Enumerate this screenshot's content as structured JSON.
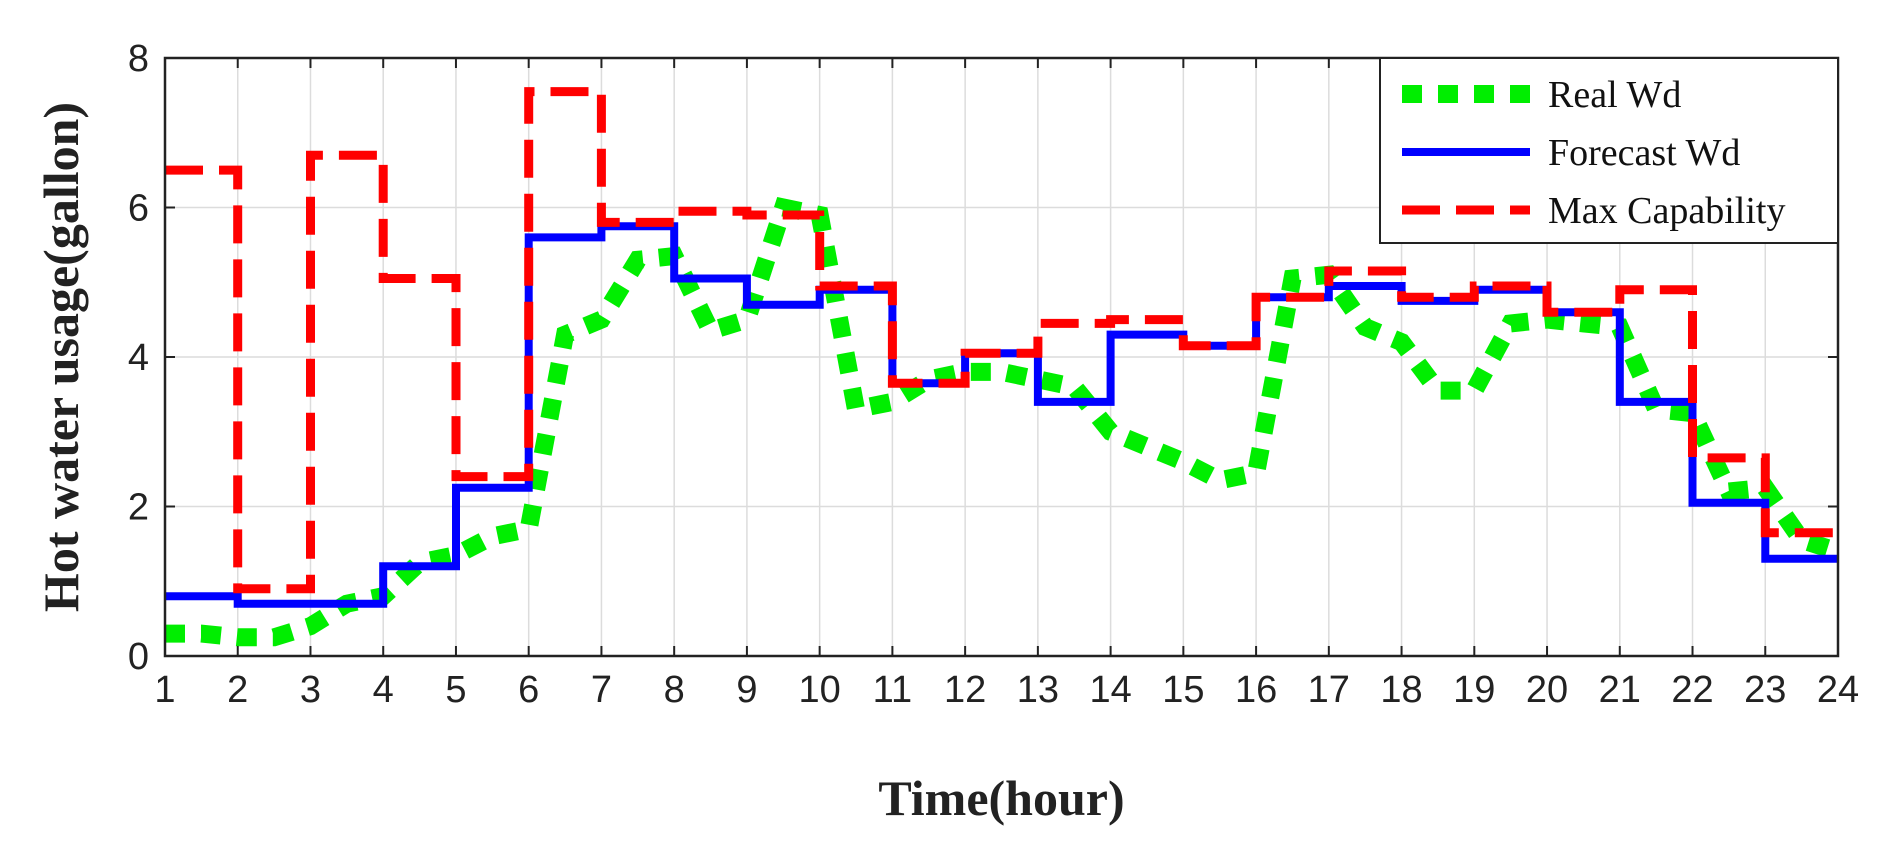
{
  "chart_data": {
    "type": "line",
    "xlabel": "Time(hour)",
    "ylabel": "Hot water usage(gallon)",
    "xlim": [
      1,
      24
    ],
    "ylim": [
      0,
      8
    ],
    "xticks": [
      1,
      2,
      3,
      4,
      5,
      6,
      7,
      8,
      9,
      10,
      11,
      12,
      13,
      14,
      15,
      16,
      17,
      18,
      19,
      20,
      21,
      22,
      23,
      24
    ],
    "yticks": [
      0,
      2,
      4,
      6,
      8
    ],
    "grid": true,
    "legend_position": "top-right",
    "step": true,
    "series": [
      {
        "name": "Real Wd",
        "color": "#00ee00",
        "style": "dotted",
        "x": [
          1,
          1.5,
          2,
          2.5,
          3,
          3.5,
          4,
          4.5,
          5,
          5.5,
          6,
          6.5,
          7,
          7.5,
          8,
          8.5,
          9,
          9.5,
          10,
          10.5,
          11,
          11.5,
          12,
          12.5,
          13,
          13.5,
          14,
          14.5,
          15,
          15.5,
          16,
          16.5,
          17,
          17.5,
          18,
          18.5,
          19,
          19.5,
          20,
          20.5,
          21,
          21.5,
          22,
          22.5,
          23,
          23.5,
          24
        ],
        "values": [
          0.3,
          0.3,
          0.25,
          0.25,
          0.4,
          0.7,
          0.8,
          1.25,
          1.35,
          1.6,
          1.7,
          4.3,
          4.5,
          5.3,
          5.35,
          4.35,
          4.5,
          6.0,
          5.9,
          3.3,
          3.4,
          3.7,
          3.8,
          3.8,
          3.7,
          3.6,
          3.0,
          2.8,
          2.6,
          2.35,
          2.45,
          5.05,
          5.1,
          4.4,
          4.2,
          3.55,
          3.55,
          4.45,
          4.5,
          4.45,
          4.4,
          3.3,
          3.25,
          2.2,
          2.25,
          1.55,
          1.4
        ]
      },
      {
        "name": "Forecast Wd",
        "color": "#0000ff",
        "style": "solid",
        "x": [
          1,
          2,
          3,
          4,
          5,
          6,
          7,
          8,
          9,
          10,
          11,
          12,
          13,
          14,
          15,
          16,
          17,
          18,
          19,
          20,
          21,
          22,
          23
        ],
        "values": [
          0.8,
          0.7,
          0.7,
          1.2,
          2.25,
          5.6,
          5.75,
          5.05,
          4.7,
          4.9,
          3.65,
          4.05,
          3.4,
          4.3,
          4.15,
          4.8,
          4.95,
          4.75,
          4.9,
          4.6,
          3.4,
          2.05,
          1.3
        ]
      },
      {
        "name": "Max Capability",
        "color": "#ff0000",
        "style": "dashed",
        "x": [
          1,
          2,
          3,
          4,
          5,
          6,
          7,
          8,
          9,
          10,
          11,
          12,
          13,
          14,
          15,
          16,
          17,
          18,
          19,
          20,
          21,
          22,
          23
        ],
        "values": [
          6.5,
          0.9,
          6.7,
          5.05,
          2.4,
          7.55,
          5.8,
          5.95,
          5.9,
          4.95,
          3.65,
          4.05,
          4.45,
          4.5,
          4.15,
          4.8,
          5.15,
          4.8,
          4.95,
          4.6,
          4.9,
          2.65,
          1.65
        ]
      }
    ]
  }
}
